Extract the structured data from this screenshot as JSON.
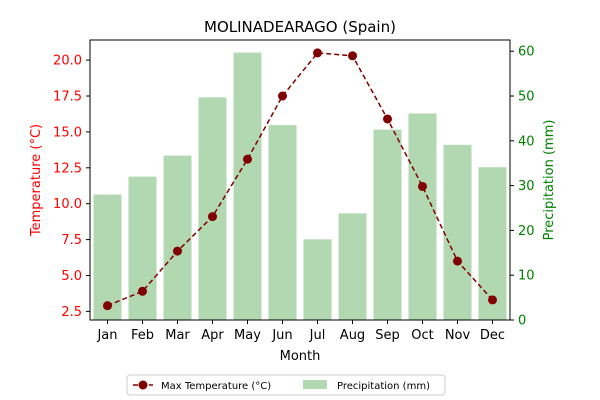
{
  "chart_data": {
    "type": "bar+line",
    "title": "MOLINADEARAGO (Spain)",
    "xlabel": "Month",
    "categories": [
      "Jan",
      "Feb",
      "Mar",
      "Apr",
      "May",
      "Jun",
      "Jul",
      "Aug",
      "Sep",
      "Oct",
      "Nov",
      "Dec"
    ],
    "left_axis": {
      "label": "Temperature (°C)",
      "color": "#ff0000",
      "ylim": [
        1.9,
        21.4
      ],
      "ticks": [
        "2.5",
        "5.0",
        "7.5",
        "10.0",
        "12.5",
        "15.0",
        "17.5",
        "20.0"
      ]
    },
    "right_axis": {
      "label": "Precipitation (mm)",
      "color": "#008000",
      "ylim": [
        0,
        62.5
      ],
      "ticks": [
        "0",
        "10",
        "20",
        "30",
        "40",
        "50",
        "60"
      ]
    },
    "series": [
      {
        "name": "Max Temperature (°C)",
        "kind": "line",
        "axis": "left",
        "color": "#800000",
        "style": "dashed",
        "marker": "circle",
        "values": [
          2.9,
          3.9,
          6.7,
          9.1,
          13.1,
          17.5,
          20.5,
          20.3,
          15.9,
          11.2,
          6.0,
          3.3
        ]
      },
      {
        "name": "Precipitation (mm)",
        "kind": "bar",
        "axis": "right",
        "color": "#b2d8b2",
        "values": [
          28.0,
          32.0,
          36.7,
          49.7,
          59.7,
          43.5,
          18.0,
          23.8,
          42.5,
          46.1,
          39.1,
          34.1
        ]
      }
    ],
    "legend": {
      "placement": "bottom-center",
      "columns": 2
    }
  }
}
